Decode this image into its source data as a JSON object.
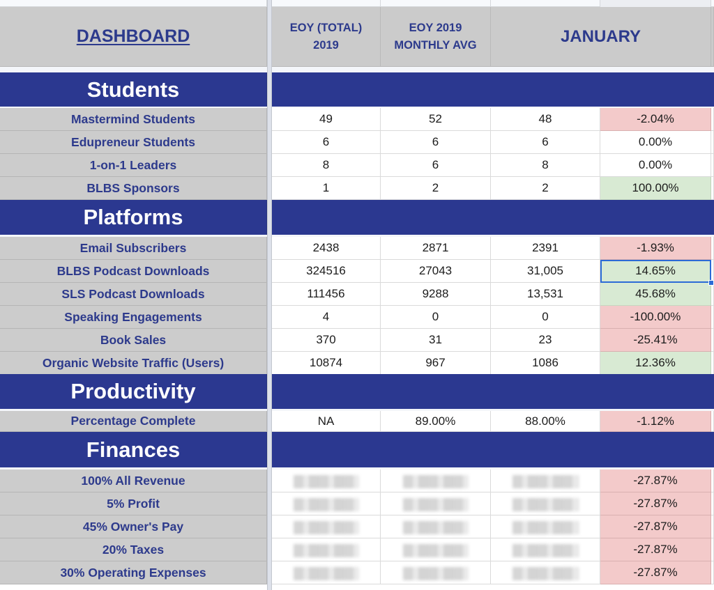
{
  "header": {
    "title": "DASHBOARD",
    "columns": [
      "EOY (TOTAL) 2019",
      "EOY 2019 MONTHLY AVG",
      "JANUARY",
      ""
    ],
    "col1_line1": "EOY (TOTAL)",
    "col1_line2": "2019",
    "col2_line1": "EOY 2019",
    "col2_line2": "MONTHLY AVG",
    "col3": "JANUARY"
  },
  "colors": {
    "section_bg": "#2b3890",
    "label_text": "#2d3a8c",
    "label_bg": "#cccccc",
    "negative_bg": "#f3caca",
    "positive_bg": "#d8ead3",
    "selection": "#2c6bd6"
  },
  "sections": {
    "students": {
      "title": "Students",
      "rows": [
        {
          "label": "Mastermind Students",
          "eoy_total": "49",
          "monthly_avg": "52",
          "january": "48",
          "change": "-2.04%",
          "status": "negative"
        },
        {
          "label": "Edupreneur Students",
          "eoy_total": "6",
          "monthly_avg": "6",
          "january": "6",
          "change": "0.00%",
          "status": "neutral"
        },
        {
          "label": "1-on-1 Leaders",
          "eoy_total": "8",
          "monthly_avg": "6",
          "january": "8",
          "change": "0.00%",
          "status": "neutral"
        },
        {
          "label": "BLBS Sponsors",
          "eoy_total": "1",
          "monthly_avg": "2",
          "january": "2",
          "change": "100.00%",
          "status": "positive"
        }
      ]
    },
    "platforms": {
      "title": "Platforms",
      "rows": [
        {
          "label": "Email Subscribers",
          "eoy_total": "2438",
          "monthly_avg": "2871",
          "january": "2391",
          "change": "-1.93%",
          "status": "negative"
        },
        {
          "label": "BLBS Podcast Downloads",
          "eoy_total": "324516",
          "monthly_avg": "27043",
          "january": "31,005",
          "change": "14.65%",
          "status": "positive",
          "selected": true
        },
        {
          "label": "SLS Podcast Downloads",
          "eoy_total": "111456",
          "monthly_avg": "9288",
          "january": "13,531",
          "change": "45.68%",
          "status": "positive"
        },
        {
          "label": "Speaking Engagements",
          "eoy_total": "4",
          "monthly_avg": "0",
          "january": "0",
          "change": "-100.00%",
          "status": "negative"
        },
        {
          "label": "Book Sales",
          "eoy_total": "370",
          "monthly_avg": "31",
          "january": "23",
          "change": "-25.41%",
          "status": "negative"
        },
        {
          "label": "Organic Website Traffic (Users)",
          "eoy_total": "10874",
          "monthly_avg": "967",
          "january": "1086",
          "change": "12.36%",
          "status": "positive"
        }
      ]
    },
    "productivity": {
      "title": "Productivity",
      "rows": [
        {
          "label": "Percentage Complete",
          "eoy_total": "NA",
          "monthly_avg": "89.00%",
          "january": "88.00%",
          "change": "-1.12%",
          "status": "negative"
        }
      ]
    },
    "finances": {
      "title": "Finances",
      "rows": [
        {
          "label": "100% All Revenue",
          "eoy_total": "",
          "monthly_avg": "",
          "january": "",
          "change": "-27.87%",
          "status": "negative",
          "blurred": true
        },
        {
          "label": "5% Profit",
          "eoy_total": "",
          "monthly_avg": "",
          "january": "",
          "change": "-27.87%",
          "status": "negative",
          "blurred": true
        },
        {
          "label": "45% Owner's Pay",
          "eoy_total": "",
          "monthly_avg": "",
          "january": "",
          "change": "-27.87%",
          "status": "negative",
          "blurred": true
        },
        {
          "label": "20% Taxes",
          "eoy_total": "",
          "monthly_avg": "",
          "january": "",
          "change": "-27.87%",
          "status": "negative",
          "blurred": true
        },
        {
          "label": "30% Operating Expenses",
          "eoy_total": "",
          "monthly_avg": "",
          "january": "",
          "change": "-27.87%",
          "status": "negative",
          "blurred": true
        }
      ]
    }
  }
}
